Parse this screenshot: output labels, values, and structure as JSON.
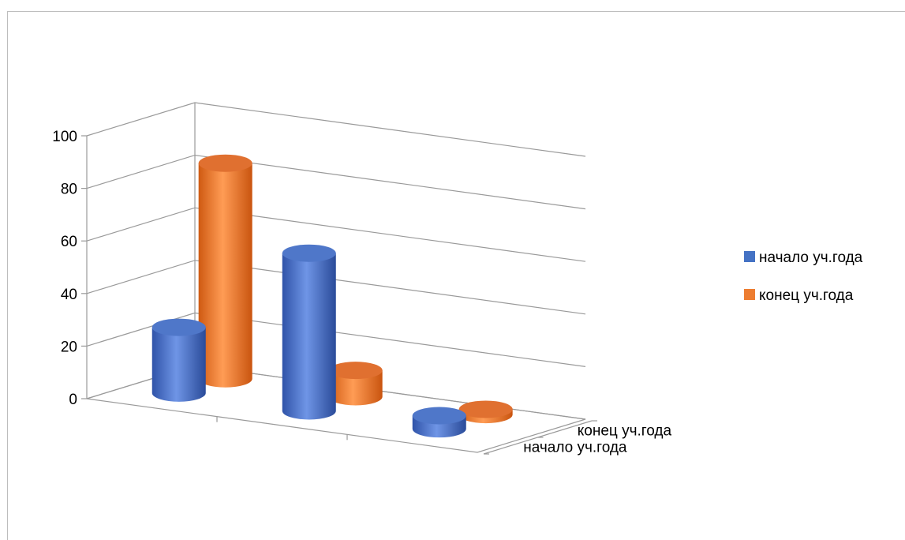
{
  "chart_data": {
    "type": "bar",
    "subtype": "3d-cylinder",
    "title": "",
    "xlabel": "",
    "ylabel": "",
    "ylim": [
      0,
      100
    ],
    "y_ticks": [
      "0",
      "20",
      "40",
      "60",
      "80",
      "100"
    ],
    "grid": true,
    "categories": [
      "",
      "",
      ""
    ],
    "depth_categories": [
      "начало уч.года",
      "конец уч.года"
    ],
    "series": [
      {
        "name": "начало уч.года",
        "color": "#4472c4",
        "values": [
          25,
          60,
          5
        ]
      },
      {
        "name": "конец уч.года",
        "color": "#ed7d31",
        "values": [
          82,
          10,
          2
        ]
      }
    ],
    "legend": {
      "position": "right",
      "items": [
        "начало уч.года",
        "конец уч.года"
      ]
    }
  }
}
